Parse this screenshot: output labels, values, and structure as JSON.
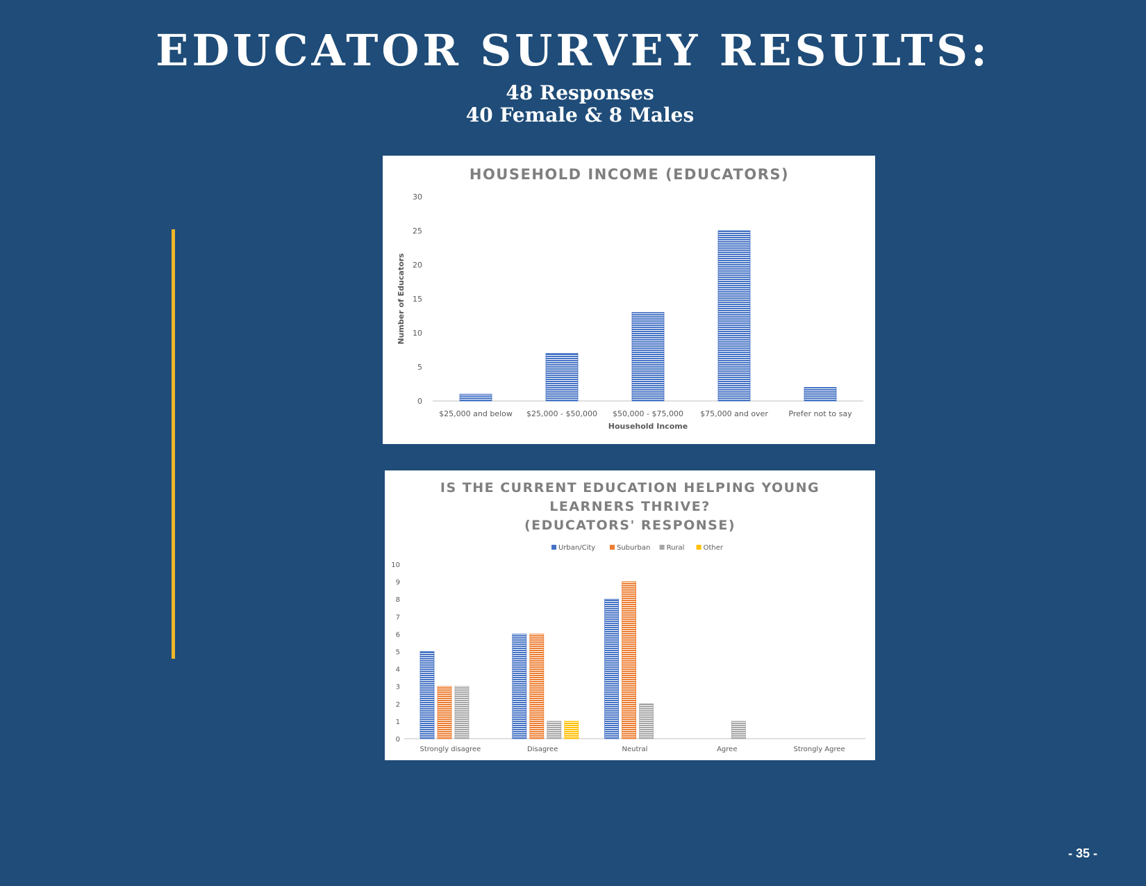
{
  "page": {
    "title": "EDUCATOR SURVEY RESULTS:",
    "subtitle_line1": "48 Responses",
    "subtitle_line2": "40 Female & 8 Males",
    "page_number": "- 35 -",
    "background_color": "#1f4c78",
    "accent_color": "#f0b62b"
  },
  "chart_data": [
    {
      "type": "bar",
      "title": "HOUSEHOLD INCOME (EDUCATORS)",
      "xlabel": "Household Income",
      "ylabel": "Number of Educators",
      "categories": [
        "$25,000 and below",
        "$25,000 - $50,000",
        "$50,000 - $75,000",
        "$75,000 and over",
        "Prefer not to say"
      ],
      "series": [
        {
          "values": [
            1,
            7,
            13,
            25,
            2
          ],
          "color": "#4472c4"
        }
      ],
      "ylim": [
        0,
        30
      ],
      "yticks": [
        0,
        5,
        10,
        15,
        20,
        25,
        30
      ],
      "grid": false,
      "legend": "none"
    },
    {
      "type": "bar",
      "title_lines": [
        "IS THE CURRENT EDUCATION HELPING YOUNG",
        "LEARNERS THRIVE?",
        "(EDUCATORS' RESPONSE)"
      ],
      "xlabel": "",
      "ylabel": "",
      "categories": [
        "Strongly disagree",
        "Disagree",
        "Neutral",
        "Agree",
        "Strongly Agree"
      ],
      "series": [
        {
          "name": "Urban/City",
          "values": [
            5,
            6,
            8,
            0,
            0
          ],
          "color": "#4472c4"
        },
        {
          "name": "Suburban",
          "values": [
            3,
            6,
            9,
            0,
            0
          ],
          "color": "#ed7d31"
        },
        {
          "name": "Rural",
          "values": [
            3,
            1,
            2,
            1,
            0
          ],
          "color": "#a5a5a5"
        },
        {
          "name": "Other",
          "values": [
            0,
            1,
            0,
            0,
            0
          ],
          "color": "#ffc000"
        }
      ],
      "ylim": [
        0,
        10
      ],
      "yticks": [
        0,
        1,
        2,
        3,
        4,
        5,
        6,
        7,
        8,
        9,
        10
      ],
      "grid": false,
      "legend": "top-center"
    }
  ]
}
